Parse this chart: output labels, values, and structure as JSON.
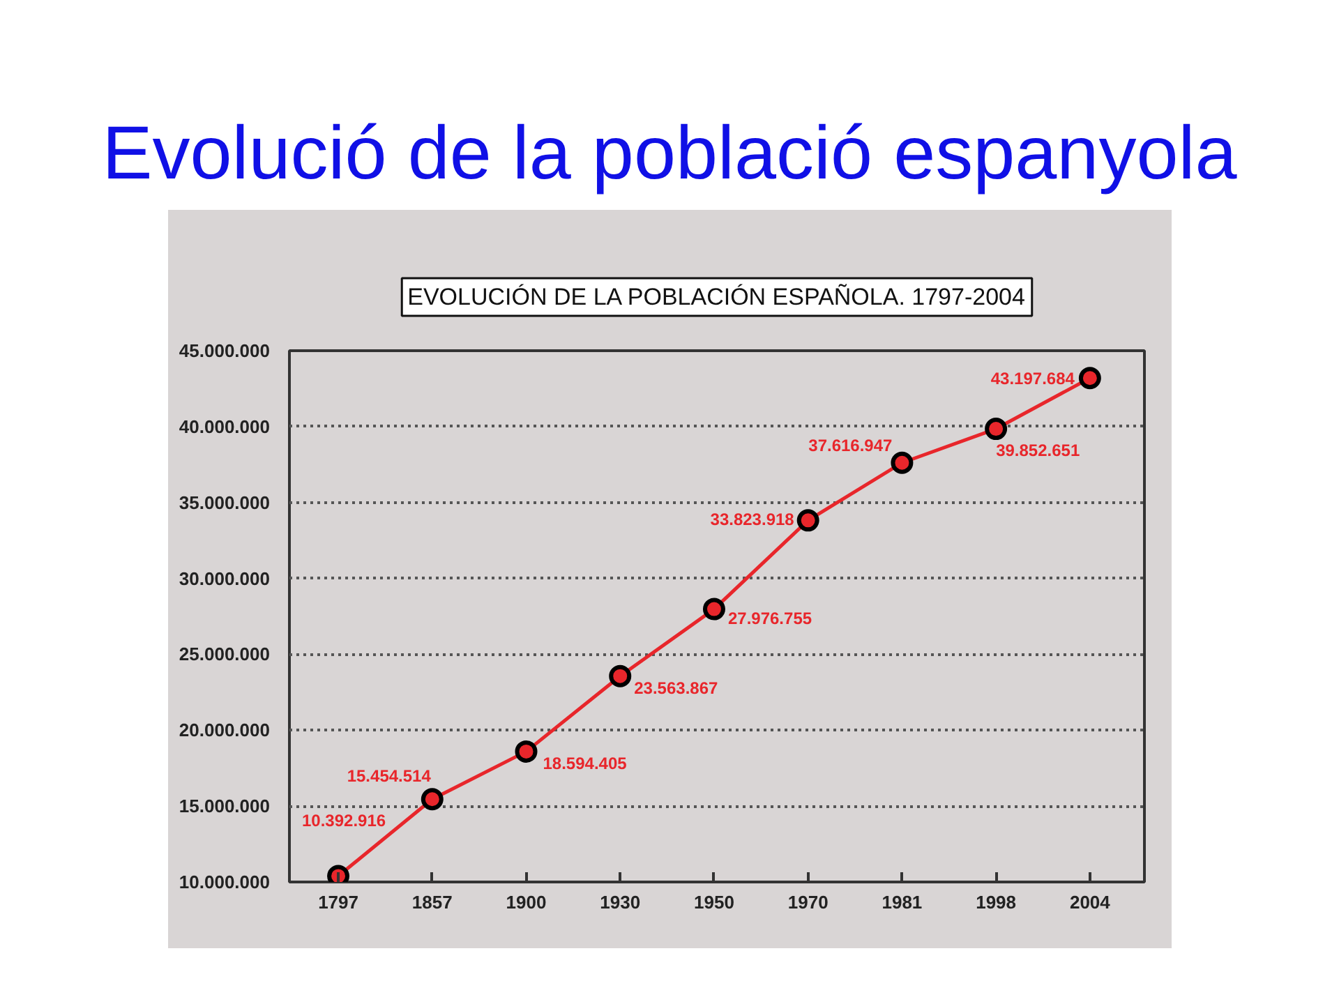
{
  "chart_data": {
    "type": "line",
    "title": "Evolució de la població espanyola",
    "subtitle": "EVOLUCIÓN DE LA POBLACIÓN ESPAÑOLA. 1797-2004",
    "categories": [
      "1797",
      "1857",
      "1900",
      "1930",
      "1950",
      "1970",
      "1981",
      "1998",
      "2004"
    ],
    "series": [
      {
        "color": "#e8262b",
        "values": [
          10392916,
          15454514,
          18594405,
          23563867,
          27976755,
          33823918,
          37616947,
          39852651,
          43197684
        ],
        "value_labels": [
          "10.392.916",
          "15.454.514",
          "18.594.405",
          "23.563.867",
          "27.976.755",
          "33.823.918",
          "37.616.947",
          "39.852.651",
          "43.197.684"
        ]
      }
    ],
    "ylim": [
      10000000,
      45000000
    ],
    "yticks": [
      {
        "value": 10000000,
        "label": "10.000.000"
      },
      {
        "value": 15000000,
        "label": "15.000.000"
      },
      {
        "value": 20000000,
        "label": "20.000.000"
      },
      {
        "value": 25000000,
        "label": "25.000.000"
      },
      {
        "value": 30000000,
        "label": "30.000.000"
      },
      {
        "value": 35000000,
        "label": "35.000.000"
      },
      {
        "value": 40000000,
        "label": "40.000.000"
      },
      {
        "value": 45000000,
        "label": "45.000.000"
      }
    ],
    "grid": "y",
    "marker": "circle",
    "line_style": "solid"
  }
}
